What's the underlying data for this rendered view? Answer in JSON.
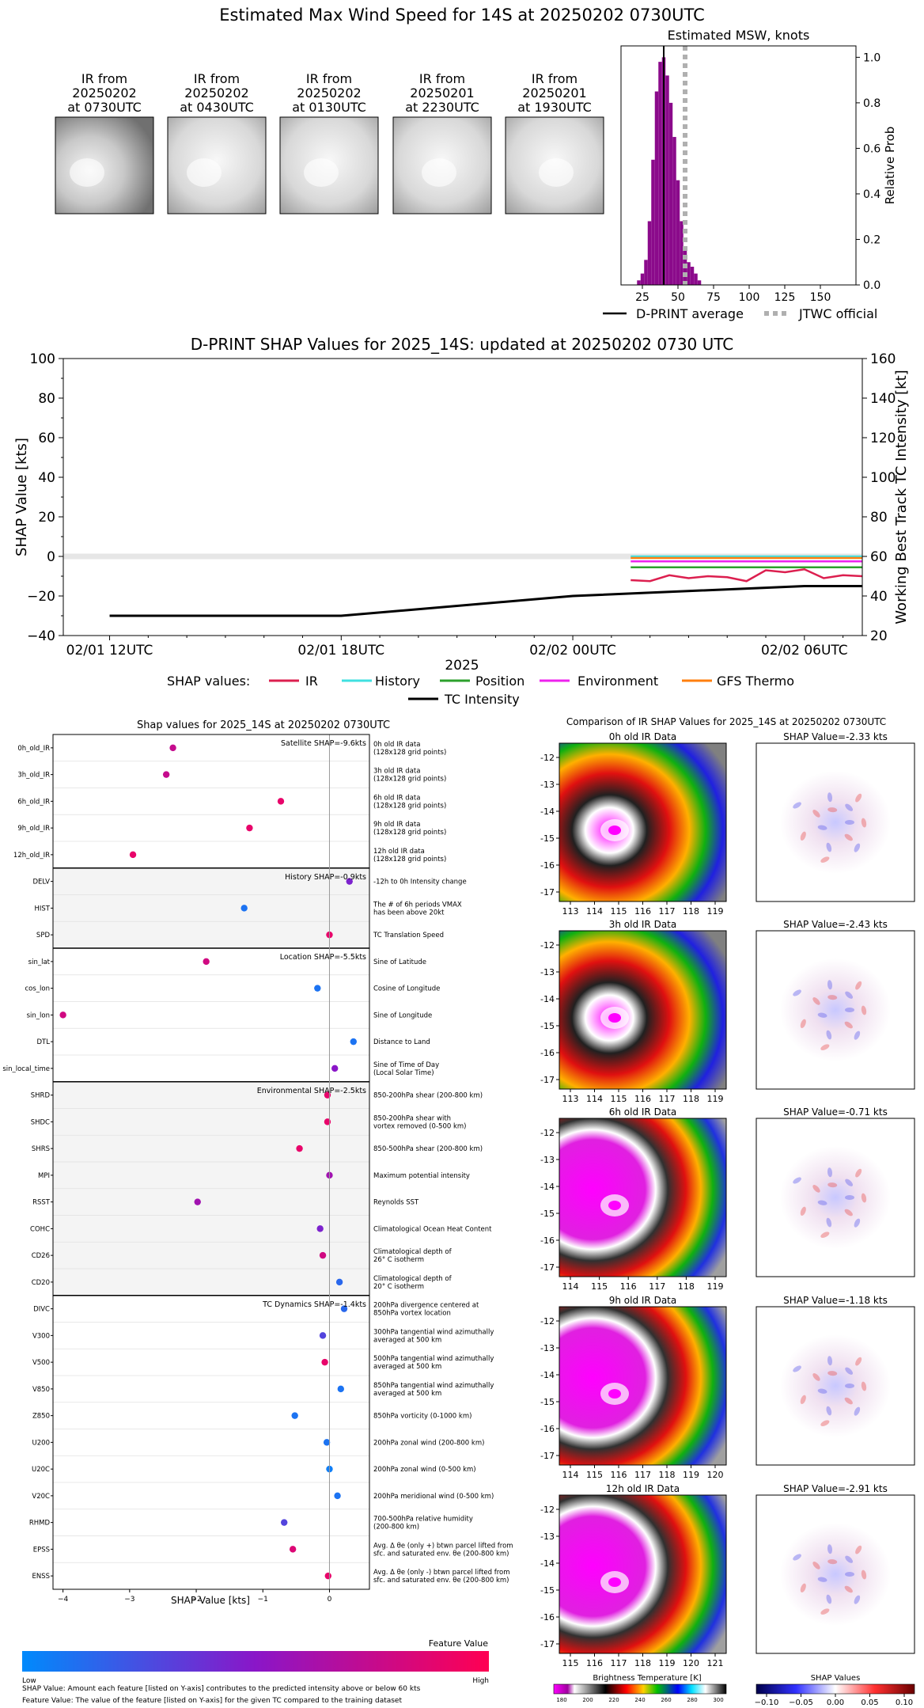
{
  "title": "Estimated Max Wind Speed for 14S at 20250202 0730UTC",
  "ir_thumbs": [
    {
      "line1": "IR from",
      "line2": "20250202",
      "line3": "at 0730UTC"
    },
    {
      "line1": "IR from",
      "line2": "20250202",
      "line3": "at 0430UTC"
    },
    {
      "line1": "IR from",
      "line2": "20250202",
      "line3": "at 0130UTC"
    },
    {
      "line1": "IR from",
      "line2": "20250201",
      "line3": "at 2230UTC"
    },
    {
      "line1": "IR from",
      "line2": "20250201",
      "line3": "at 1930UTC"
    }
  ],
  "legend_top": {
    "dprint": "D-PRINT average",
    "jtwc": "JTWC official"
  },
  "shap_legend": {
    "label": "SHAP values:",
    "ir": "IR",
    "history": "History",
    "position": "Position",
    "environment": "Environment",
    "gfs": "GFS Thermo",
    "tc": "TC Intensity"
  },
  "feature_panel": {
    "title": "Shap values for 2025_14S at 20250202 0730UTC",
    "xlabel": "SHAP Value [kts]",
    "colorbar_title": "Feature Value",
    "low": "Low",
    "high": "High",
    "footnote1": "SHAP Value: Amount each feature [listed on Y-axis] contributes to the predicted intensity above or below 60 kts",
    "footnote2": "Feature Value: The value of the feature [listed on Y-axis] for the given TC compared to the training dataset"
  },
  "ir_panel": {
    "title": "Comparison of IR SHAP Values for 2025_14S at 20250202 0730UTC",
    "bt_label": "Brightness Temperature [K]",
    "sv_label": "SHAP Values",
    "bt_ticks": [
      "180",
      "200",
      "220",
      "240",
      "260",
      "280",
      "300"
    ],
    "sv_ticks": [
      "−0.10",
      "−0.05",
      "0.00",
      "0.05",
      "0.10"
    ],
    "rows": [
      {
        "ir": "0h old IR Data",
        "shap": "SHAP Value=-2.33 kts",
        "lon": [
          "113",
          "114",
          "115",
          "116",
          "117",
          "118",
          "119"
        ]
      },
      {
        "ir": "3h old IR Data",
        "shap": "SHAP Value=-2.43 kts",
        "lon": [
          "113",
          "114",
          "115",
          "116",
          "117",
          "118",
          "119"
        ]
      },
      {
        "ir": "6h old IR Data",
        "shap": "SHAP Value=-0.71 kts",
        "lon": [
          "114",
          "115",
          "116",
          "117",
          "118",
          "119"
        ]
      },
      {
        "ir": "9h old IR Data",
        "shap": "SHAP Value=-1.18 kts",
        "lon": [
          "114",
          "115",
          "116",
          "117",
          "118",
          "119",
          "120"
        ]
      },
      {
        "ir": "12h old IR Data",
        "shap": "SHAP Value=-2.91 kts",
        "lon": [
          "115",
          "116",
          "117",
          "118",
          "119",
          "120",
          "121"
        ]
      }
    ],
    "lat": [
      "-12",
      "-13",
      "-14",
      "-15",
      "-16",
      "-17"
    ]
  },
  "chart_data": [
    {
      "type": "bar",
      "title": "Estimated MSW, knots",
      "ylabel": "Relative Prob",
      "xticks": [
        "25",
        "50",
        "75",
        "100",
        "125",
        "150"
      ],
      "yticks": [
        "0.0",
        "0.2",
        "0.4",
        "0.6",
        "0.8",
        "1.0"
      ],
      "xlim": [
        10,
        175
      ],
      "ylim": [
        0,
        1.05
      ],
      "bin_width": 2.5,
      "bins_x": [
        22.5,
        25,
        27.5,
        30,
        32.5,
        35,
        37.5,
        40,
        42.5,
        45,
        47.5,
        50,
        52.5,
        55,
        57.5,
        60,
        62.5,
        65
      ],
      "values": [
        0.02,
        0.05,
        0.11,
        0.28,
        0.55,
        0.85,
        0.98,
        1.0,
        0.92,
        0.8,
        0.65,
        0.46,
        0.28,
        0.17,
        0.1,
        0.08,
        0.05,
        0.02
      ],
      "dprint_average": 40,
      "jtwc_official": 55,
      "series": [
        {
          "name": "D-PRINT average"
        },
        {
          "name": "JTWC official"
        }
      ]
    },
    {
      "type": "line",
      "title": "D-PRINT SHAP Values for 2025_14S: updated at 20250202 0730 UTC",
      "xlabel": "2025",
      "ylabel": "SHAP Value [kts]",
      "y2label": "Working Best Track TC Intensity [kt]",
      "xticks": [
        "02/01 12UTC",
        "02/01 18UTC",
        "02/02 00UTC",
        "02/02 06UTC"
      ],
      "xtick_hours": [
        12,
        18,
        24,
        30
      ],
      "xlim_hours": [
        10.8,
        31.5
      ],
      "yticks": [
        "−40",
        "−20",
        "0",
        "20",
        "40",
        "60",
        "80",
        "100"
      ],
      "y2ticks": [
        "20",
        "40",
        "60",
        "80",
        "100",
        "120",
        "140",
        "160"
      ],
      "ylim": [
        -40,
        100
      ],
      "y2lim": [
        20,
        160
      ],
      "series": [
        {
          "name": "IR",
          "color": "#dc1f4f",
          "x": [
            25.5,
            26,
            26.5,
            27,
            27.5,
            28,
            28.5,
            29,
            29.5,
            30,
            30.5,
            31,
            31.5
          ],
          "y": [
            -12,
            -12.5,
            -9.5,
            -11,
            -10,
            -10.5,
            -12.5,
            -7,
            -8,
            -6.5,
            -11,
            -9.5,
            -10
          ]
        },
        {
          "name": "History",
          "color": "#40e0e0",
          "x": [
            25.5,
            31.5
          ],
          "y": [
            0,
            0
          ]
        },
        {
          "name": "Position",
          "color": "#2ca02c",
          "x": [
            25.5,
            31.5
          ],
          "y": [
            -5.5,
            -5.5
          ]
        },
        {
          "name": "Environment",
          "color": "#ee22ee",
          "x": [
            25.5,
            31.5
          ],
          "y": [
            -2.5,
            -2.5
          ]
        },
        {
          "name": "GFS Thermo",
          "color": "#ff7f0e",
          "x": [
            25.5,
            31.5
          ],
          "y": [
            -0.8,
            -0.8
          ]
        },
        {
          "name": "TC Intensity",
          "color": "#000000",
          "axis": "y2",
          "x": [
            12,
            18,
            24,
            30,
            31.5
          ],
          "y": [
            30,
            30,
            40,
            45,
            45
          ]
        }
      ]
    },
    {
      "type": "scatter",
      "xticks": [
        "−4",
        "−3",
        "−2",
        "−1",
        "0"
      ],
      "xlim": [
        -4.15,
        0.6
      ],
      "groups": [
        {
          "title": "Satellite SHAP=-9.6kts",
          "shaded": false,
          "features": [
            {
              "name": "0h_old_IR",
              "desc": [
                "0h old IR data",
                "(128x128 grid points)"
              ],
              "shap": -2.35,
              "fv": 0.75
            },
            {
              "name": "3h_old_IR",
              "desc": [
                "3h old IR data",
                "(128x128 grid points)"
              ],
              "shap": -2.45,
              "fv": 0.75
            },
            {
              "name": "6h_old_IR",
              "desc": [
                "6h old IR data",
                "(128x128 grid points)"
              ],
              "shap": -0.73,
              "fv": 0.9
            },
            {
              "name": "9h_old_IR",
              "desc": [
                "9h old IR data",
                "(128x128 grid points)"
              ],
              "shap": -1.2,
              "fv": 0.9
            },
            {
              "name": "12h_old_IR",
              "desc": [
                "12h old IR data",
                "(128x128 grid points)"
              ],
              "shap": -2.95,
              "fv": 0.9
            }
          ]
        },
        {
          "title": "History SHAP=-0.9kts",
          "shaded": true,
          "features": [
            {
              "name": "DELV",
              "desc": [
                "-12h to 0h Intensity change"
              ],
              "shap": 0.3,
              "fv": 0.45
            },
            {
              "name": "HIST",
              "desc": [
                "The # of 6h periods VMAX",
                "has been above 20kt"
              ],
              "shap": -1.28,
              "fv": 0.1
            },
            {
              "name": "SPD",
              "desc": [
                "TC Translation Speed"
              ],
              "shap": 0.0,
              "fv": 0.9
            }
          ]
        },
        {
          "title": "Location SHAP=-5.5kts",
          "shaded": false,
          "features": [
            {
              "name": "sin_lat",
              "desc": [
                "Sine of Latitude"
              ],
              "shap": -1.85,
              "fv": 0.8
            },
            {
              "name": "cos_lon",
              "desc": [
                "Cosine of Longitude"
              ],
              "shap": -0.18,
              "fv": 0.1
            },
            {
              "name": "sin_lon",
              "desc": [
                "Sine of Longitude"
              ],
              "shap": -4.0,
              "fv": 0.8
            },
            {
              "name": "DTL",
              "desc": [
                "Distance to Land"
              ],
              "shap": 0.36,
              "fv": 0.1
            },
            {
              "name": "sin_local_time",
              "desc": [
                "Sine of Time of Day",
                "(Local Solar Time)"
              ],
              "shap": 0.08,
              "fv": 0.5
            }
          ]
        },
        {
          "title": "Environmental SHAP=-2.5kts",
          "shaded": true,
          "features": [
            {
              "name": "SHRD",
              "desc": [
                "850-200hPa shear (200-800 km)"
              ],
              "shap": -0.03,
              "fv": 0.9
            },
            {
              "name": "SHDC",
              "desc": [
                "850-200hPa shear with",
                "vortex removed (0-500 km)"
              ],
              "shap": -0.03,
              "fv": 0.9
            },
            {
              "name": "SHRS",
              "desc": [
                "850-500hPa shear (200-800 km)"
              ],
              "shap": -0.45,
              "fv": 0.9
            },
            {
              "name": "MPI",
              "desc": [
                "Maximum potential intensity"
              ],
              "shap": 0.0,
              "fv": 0.6
            },
            {
              "name": "RSST",
              "desc": [
                "Reynolds SST"
              ],
              "shap": -1.98,
              "fv": 0.6
            },
            {
              "name": "COHC",
              "desc": [
                "Climatological Ocean Heat Content"
              ],
              "shap": -0.14,
              "fv": 0.45
            },
            {
              "name": "CD26",
              "desc": [
                "Climatological depth of",
                "26° C isotherm"
              ],
              "shap": -0.1,
              "fv": 0.8
            },
            {
              "name": "CD20",
              "desc": [
                "Climatological depth of",
                "20° C isotherm"
              ],
              "shap": 0.15,
              "fv": 0.15
            }
          ]
        },
        {
          "title": "TC Dynamics SHAP=-1.4kts",
          "shaded": false,
          "features": [
            {
              "name": "DIVC",
              "desc": [
                "200hPa divergence centered at",
                "850hPa vortex location"
              ],
              "shap": 0.22,
              "fv": 0.15
            },
            {
              "name": "V300",
              "desc": [
                "300hPa tangential wind azimuthally",
                "averaged at 500 km"
              ],
              "shap": -0.1,
              "fv": 0.3
            },
            {
              "name": "V500",
              "desc": [
                "500hPa tangential wind azimuthally",
                "averaged at 500 km"
              ],
              "shap": -0.07,
              "fv": 0.9
            },
            {
              "name": "V850",
              "desc": [
                "850hPa tangential wind azimuthally",
                "averaged at 500 km"
              ],
              "shap": 0.17,
              "fv": 0.1
            },
            {
              "name": "Z850",
              "desc": [
                "850hPa vorticity (0-1000 km)"
              ],
              "shap": -0.52,
              "fv": 0.1
            },
            {
              "name": "U200",
              "desc": [
                "200hPa zonal wind (200-800 km)"
              ],
              "shap": -0.04,
              "fv": 0.1
            },
            {
              "name": "U20C",
              "desc": [
                "200hPa zonal wind (0-500 km)"
              ],
              "shap": 0.0,
              "fv": 0.05
            },
            {
              "name": "V20C",
              "desc": [
                "200hPa meridional wind (0-500 km)"
              ],
              "shap": 0.12,
              "fv": 0.1
            },
            {
              "name": "RHMD",
              "desc": [
                "700-500hPa relative humidity",
                "(200-800 km)"
              ],
              "shap": -0.68,
              "fv": 0.3
            },
            {
              "name": "EPSS",
              "desc": [
                "Avg. Δ θe (only +) btwn parcel lifted from",
                "sfc. and saturated env. θe (200-800 km)"
              ],
              "shap": -0.55,
              "fv": 0.85
            },
            {
              "name": "ENSS",
              "desc": [
                "Avg. Δ θe (only -) btwn parcel lifted from",
                "sfc. and saturated env. θe (200-800 km)"
              ],
              "shap": -0.02,
              "fv": 0.9
            }
          ]
        }
      ]
    }
  ]
}
